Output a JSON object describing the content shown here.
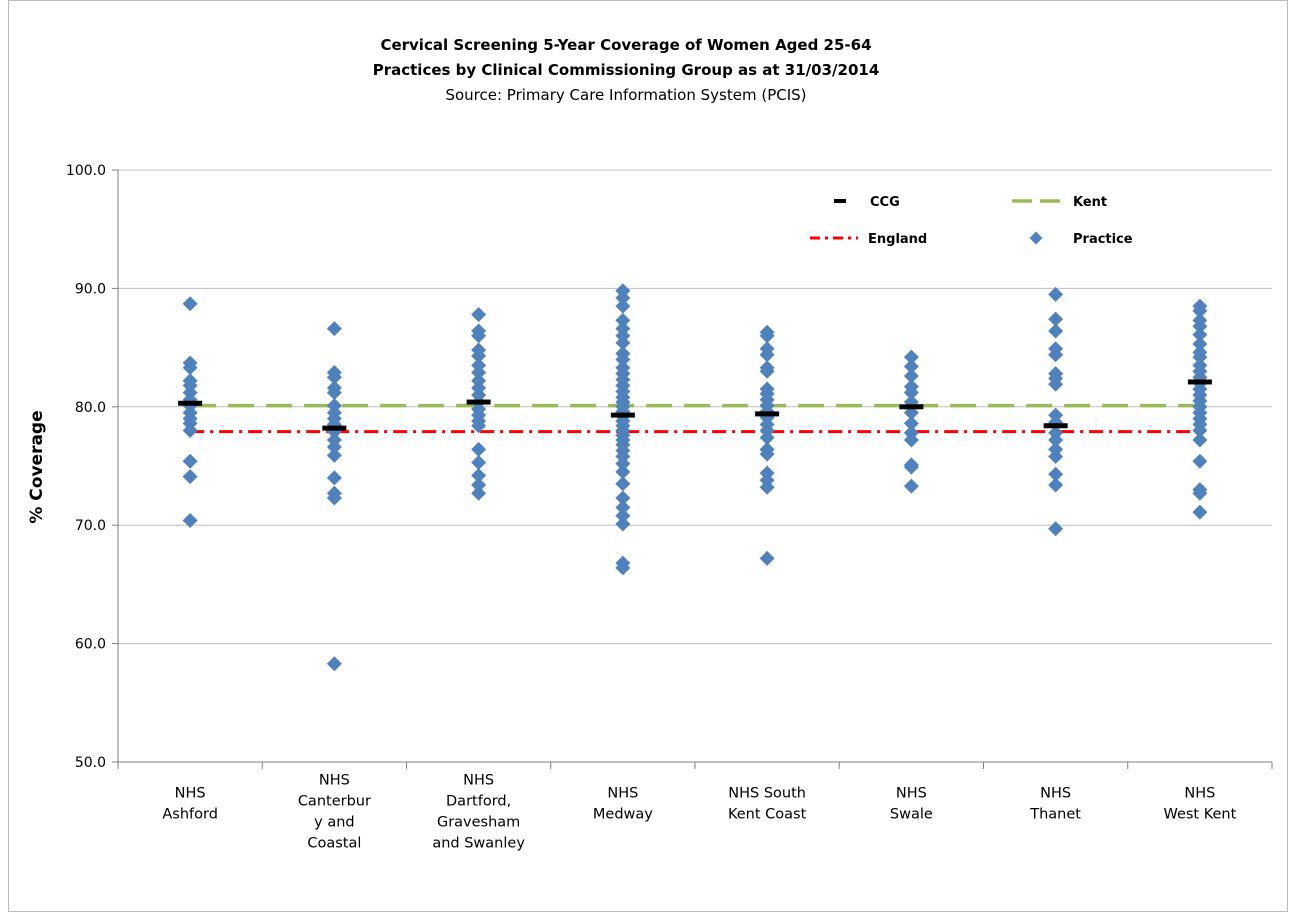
{
  "chart_data": {
    "type": "scatter",
    "title_lines": [
      "Cervical Screening 5-Year Coverage of Women Aged 25-64",
      "Practices by Clinical Commissioning  Group as at 31/03/2014"
    ],
    "subtitle": "Source: Primary Care Information System (PCIS)",
    "ylabel": "% Coverage",
    "xlabel": "",
    "ylim": [
      50,
      100
    ],
    "yticks": [
      "50.0",
      "60.0",
      "70.0",
      "80.0",
      "90.0",
      "100.0"
    ],
    "ytick_values": [
      50,
      60,
      70,
      80,
      90,
      100
    ],
    "grid": true,
    "legend_position": "top-right",
    "categories": [
      [
        "NHS",
        "Ashford"
      ],
      [
        "NHS",
        "Canterbur",
        "y and",
        "Coastal"
      ],
      [
        "NHS",
        "Dartford,",
        "Gravesham",
        "and Swanley"
      ],
      [
        "NHS",
        "Medway"
      ],
      [
        "NHS South",
        "Kent Coast"
      ],
      [
        "NHS",
        "Swale"
      ],
      [
        "NHS",
        "Thanet"
      ],
      [
        "NHS",
        "West Kent"
      ]
    ],
    "series": [
      {
        "name": "CCG",
        "marker": "dash",
        "color": "#000000",
        "values": [
          80.3,
          78.2,
          80.4,
          79.3,
          79.4,
          80.0,
          78.4,
          82.1
        ]
      },
      {
        "name": "Kent",
        "marker": "dashed-line",
        "color": "#9bbb59",
        "value": 80.1
      },
      {
        "name": "England",
        "marker": "dash-dot-line",
        "color": "#ff0000",
        "value": 77.9
      },
      {
        "name": "Practice",
        "marker": "diamond",
        "color": "#4f81bd",
        "points": [
          [
            88.7,
            83.7,
            83.3,
            82.2,
            81.8,
            81.2,
            80.6,
            80.1,
            79.5,
            79.0,
            78.6,
            78.0,
            75.4,
            74.1,
            70.4
          ],
          [
            86.6,
            82.9,
            82.5,
            81.6,
            81.2,
            80.1,
            79.5,
            79.0,
            78.5,
            77.9,
            77.2,
            76.6,
            75.9,
            74.0,
            72.7,
            72.3,
            58.3
          ],
          [
            87.8,
            86.4,
            86.0,
            84.8,
            84.3,
            83.5,
            82.9,
            82.2,
            81.6,
            81.0,
            80.4,
            79.8,
            79.3,
            78.8,
            78.4,
            76.4,
            75.3,
            74.2,
            73.4,
            72.7
          ],
          [
            89.8,
            89.2,
            88.5,
            87.3,
            86.6,
            86.0,
            85.4,
            84.5,
            84.0,
            83.3,
            82.8,
            82.3,
            81.8,
            81.3,
            80.8,
            80.4,
            80.0,
            79.6,
            79.2,
            78.8,
            78.4,
            78.0,
            77.6,
            77.2,
            76.8,
            76.3,
            75.8,
            75.2,
            74.5,
            73.5,
            72.3,
            71.5,
            70.8,
            70.1,
            66.8,
            66.4
          ],
          [
            86.3,
            86.0,
            84.9,
            84.4,
            83.3,
            83.0,
            81.5,
            81.1,
            80.6,
            80.1,
            79.6,
            79.1,
            78.5,
            78.0,
            77.4,
            76.4,
            76.0,
            74.4,
            73.8,
            73.2,
            67.2
          ],
          [
            84.2,
            83.4,
            82.6,
            81.7,
            81.2,
            80.4,
            79.5,
            78.6,
            77.8,
            77.2,
            75.1,
            74.9,
            73.3
          ],
          [
            89.5,
            87.4,
            86.4,
            84.9,
            84.4,
            82.8,
            82.4,
            81.9,
            79.3,
            78.7,
            77.8,
            77.2,
            76.4,
            75.8,
            74.3,
            73.4,
            69.7
          ],
          [
            88.5,
            88.1,
            87.3,
            86.8,
            86.1,
            85.3,
            84.6,
            84.2,
            83.5,
            83.0,
            82.5,
            82.0,
            81.5,
            81.0,
            80.5,
            80.0,
            79.5,
            79.0,
            78.5,
            78.0,
            77.2,
            75.4,
            73.0,
            72.7,
            71.1
          ]
        ]
      }
    ]
  }
}
